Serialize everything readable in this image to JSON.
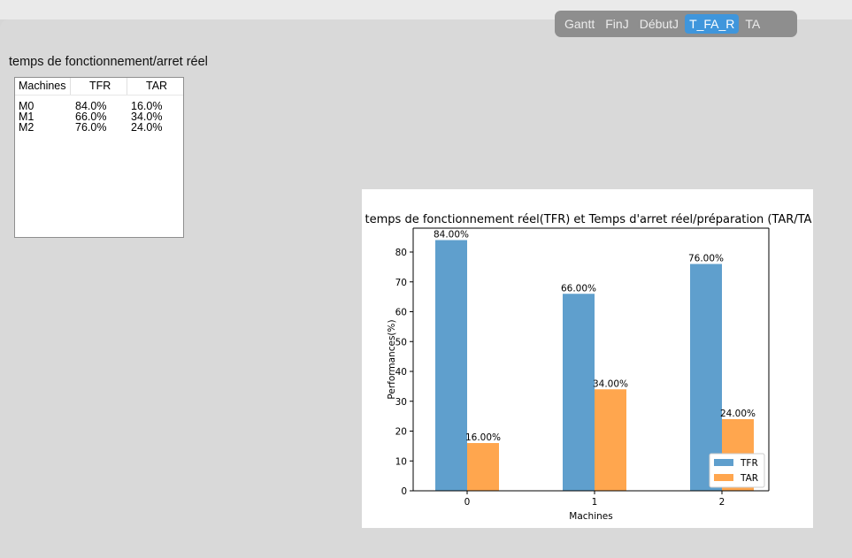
{
  "tabs": [
    {
      "label": "Gantt",
      "active": false
    },
    {
      "label": "FinJ",
      "active": false
    },
    {
      "label": "DébutJ",
      "active": false
    },
    {
      "label": "T_FA_R",
      "active": true
    },
    {
      "label": "TA",
      "active": false
    }
  ],
  "section_title": "temps de fonctionnement/arret réel",
  "table": {
    "headers": [
      "Machines",
      "TFR",
      "TAR"
    ],
    "rows": [
      [
        "M0",
        "84.0%",
        "16.0%"
      ],
      [
        "M1",
        "66.0%",
        "34.0%"
      ],
      [
        "M2",
        "76.0%",
        "24.0%"
      ]
    ]
  },
  "colors": {
    "tfr": "#5f9fcd",
    "tar": "#ffa64e",
    "accent": "#3f96dc"
  },
  "chart_data": {
    "type": "bar",
    "title": "temps de fonctionnement réel(TFR) et Temps d'arret réel/préparation (TAR/TA",
    "xlabel": "Machines",
    "ylabel": "Performances(%)",
    "categories": [
      "0",
      "1",
      "2"
    ],
    "series": [
      {
        "name": "TFR",
        "values": [
          84,
          66,
          76
        ],
        "labels": [
          "84.00%",
          "66.00%",
          "76.00%"
        ]
      },
      {
        "name": "TAR",
        "values": [
          16,
          34,
          24
        ],
        "labels": [
          "16.00%",
          "34.00%",
          "24.00%"
        ]
      }
    ],
    "ylim": [
      0,
      88
    ],
    "yticks": [
      0,
      10,
      20,
      30,
      40,
      50,
      60,
      70,
      80
    ],
    "legend": "bottom-right",
    "grid": false
  }
}
